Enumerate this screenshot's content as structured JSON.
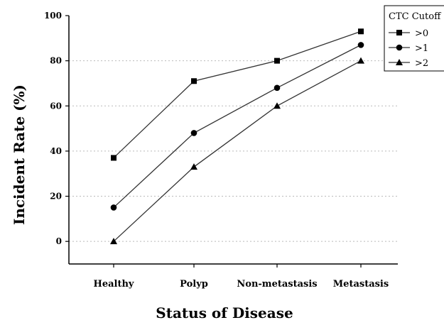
{
  "chart_data": {
    "type": "line",
    "title": "",
    "xlabel": "Status of Disease",
    "ylabel": "Incident Rate (%)",
    "categories": [
      "Healthy",
      "Polyp",
      "Non-metastasis",
      "Metastasis"
    ],
    "ylim": [
      -10,
      100
    ],
    "yticks": [
      0,
      20,
      40,
      60,
      80,
      100
    ],
    "grid": "horizontal dotted",
    "legend": {
      "title": "CTC Cutoff",
      "placement": "top-right"
    },
    "series": [
      {
        "name": ">0",
        "marker": "square",
        "values": [
          37,
          71,
          80,
          93
        ]
      },
      {
        "name": ">1",
        "marker": "circle",
        "values": [
          15,
          48,
          68,
          87
        ]
      },
      {
        "name": ">2",
        "marker": "triangle",
        "values": [
          0,
          33,
          60,
          80
        ]
      }
    ],
    "colors": {
      "line": "#333333",
      "marker": "#000000",
      "grid": "#bbbbbb"
    }
  }
}
